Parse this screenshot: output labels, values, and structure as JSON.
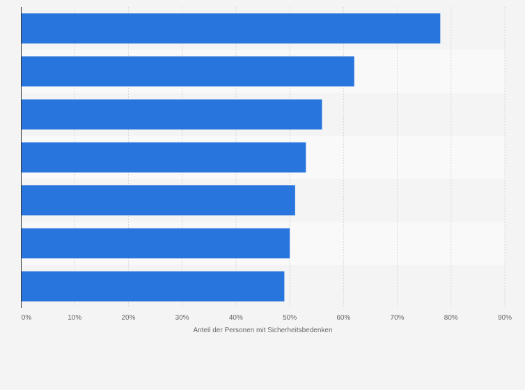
{
  "chart_data": {
    "type": "bar",
    "orientation": "horizontal",
    "categories": [
      "",
      "",
      "",
      "",
      "",
      "",
      ""
    ],
    "values": [
      78,
      62,
      56,
      53,
      51,
      50,
      49
    ],
    "xlabel": "Anteil der Personen mit Sicherheitsbedenken",
    "ylabel": "",
    "xlim": [
      0,
      90
    ],
    "x_ticks": [
      "0%",
      "10%",
      "20%",
      "30%",
      "40%",
      "50%",
      "60%",
      "70%",
      "80%",
      "90%"
    ],
    "grid": true,
    "legend": "none",
    "bar_color": "#2876dd",
    "band_colors": [
      "#f4f4f4",
      "#f9f9f9"
    ]
  }
}
